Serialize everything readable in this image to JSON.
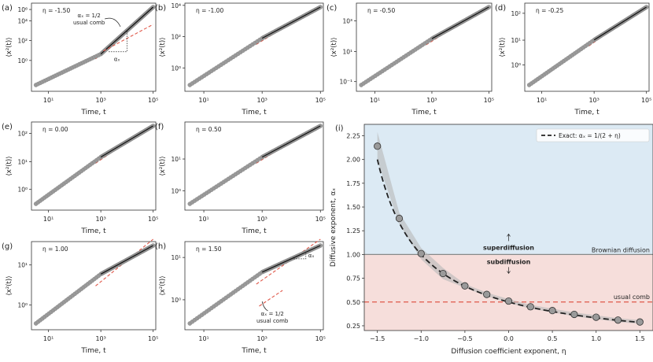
{
  "chart_data": [
    {
      "type": "scatter",
      "panel": "(a)",
      "eta": -1.5,
      "eta_label": "η = -1.50",
      "xlabel": "Time, t",
      "ylabel": "⟨x²(t)⟩",
      "xscale": "log",
      "yscale": "log",
      "xtick_labels": [
        "10¹",
        "10³",
        "10⁵"
      ],
      "ytick_labels": [
        "10⁰",
        "10²",
        "10⁴",
        "10⁶"
      ],
      "y_end_decades": 7.1,
      "fit_slope_long": 2.14,
      "ref_slope": 0.5,
      "annotation": {
        "line1": "αₓ = 1/2",
        "line2": "usual comb",
        "slope_label": "αₓ"
      }
    },
    {
      "type": "scatter",
      "panel": "(b)",
      "eta": -1.0,
      "eta_label": "η = -1.00",
      "xlabel": "Time, t",
      "ylabel": "⟨x²(t)⟩",
      "xscale": "log",
      "yscale": "log",
      "xtick_labels": [
        "10¹",
        "10³",
        "10⁵"
      ],
      "ytick_labels": [
        "10⁰",
        "10²",
        "10⁴"
      ],
      "y_end_decades": 5.0,
      "fit_slope_long": 1.0
    },
    {
      "type": "scatter",
      "panel": "(c)",
      "eta": -0.5,
      "eta_label": "η = -0.50",
      "xlabel": "Time, t",
      "ylabel": "⟨x²(t)⟩",
      "xscale": "log",
      "yscale": "log",
      "xtick_labels": [
        "10¹",
        "10³",
        "10⁵"
      ],
      "ytick_labels": [
        "10⁻¹",
        "10¹",
        "10³"
      ],
      "y_end_decades": 3.3,
      "fit_slope_long": 0.67
    },
    {
      "type": "scatter",
      "panel": "(d)",
      "eta": -0.25,
      "eta_label": "η = -0.25",
      "xlabel": "Time, t",
      "ylabel": "⟨x²(t)⟩",
      "xscale": "log",
      "yscale": "log",
      "xtick_labels": [
        "10¹",
        "10³",
        "10⁵"
      ],
      "ytick_labels": [
        "10⁰",
        "10¹",
        "10²"
      ],
      "y_end_decades": 2.7,
      "fit_slope_long": 0.57
    },
    {
      "type": "scatter",
      "panel": "(e)",
      "eta": 0.0,
      "eta_label": "η = 0.00",
      "xlabel": "Time, t",
      "ylabel": "⟨x²(t)⟩",
      "xscale": "log",
      "yscale": "log",
      "xtick_labels": [
        "10¹",
        "10³",
        "10⁵"
      ],
      "ytick_labels": [
        "10⁰",
        "10¹",
        "10²"
      ],
      "y_end_decades": 2.5,
      "fit_slope_long": 0.5
    },
    {
      "type": "scatter",
      "panel": "(f)",
      "eta": 0.5,
      "eta_label": "η = 0.50",
      "xlabel": "Time, t",
      "ylabel": "⟨x²(t)⟩",
      "xscale": "log",
      "yscale": "log",
      "xtick_labels": [
        "10¹",
        "10³",
        "10⁵"
      ],
      "ytick_labels": [
        "10⁰",
        "10¹"
      ],
      "y_end_decades": 2.0,
      "fit_slope_long": 0.4
    },
    {
      "type": "scatter",
      "panel": "(g)",
      "eta": 1.0,
      "eta_label": "η = 1.00",
      "xlabel": "Time, t",
      "ylabel": "⟨x²(t)⟩",
      "xscale": "log",
      "yscale": "log",
      "xtick_labels": [
        "10¹",
        "10³",
        "10⁵"
      ],
      "ytick_labels": [
        "10⁰",
        "10¹"
      ],
      "y_end_decades": 1.8,
      "fit_slope_long": 0.33
    },
    {
      "type": "scatter",
      "panel": "(h)",
      "eta": 1.5,
      "eta_label": "η = 1.50",
      "xlabel": "Time, t",
      "ylabel": "⟨x²(t)⟩",
      "xscale": "log",
      "yscale": "log",
      "xtick_labels": [
        "10¹",
        "10³",
        "10⁵"
      ],
      "ytick_labels": [
        "10⁰",
        "10¹"
      ],
      "y_end_decades": 1.7,
      "fit_slope_long": 0.29,
      "ref_slope": 0.5,
      "annotation": {
        "line1": "αₓ = 1/2",
        "line2": "usual comb",
        "slope_label": "αₓ"
      }
    },
    {
      "type": "line",
      "panel": "(i)",
      "xlabel": "Diffusion coefficient exponent, η",
      "ylabel": "Diffusive exponent, αₓ",
      "xlim": [
        -1.65,
        1.65
      ],
      "ylim": [
        0.2,
        2.37
      ],
      "xticks": [
        -1.5,
        -1.0,
        -0.5,
        0.0,
        0.5,
        1.0,
        1.5
      ],
      "xtick_labels": [
        "−1.5",
        "−1.0",
        "−0.5",
        "0.0",
        "0.5",
        "1.0",
        "1.5"
      ],
      "yticks": [
        0.25,
        0.5,
        0.75,
        1.0,
        1.25,
        1.5,
        1.75,
        2.0,
        2.25
      ],
      "ytick_labels": [
        "0.25",
        "0.50",
        "0.75",
        "1.00",
        "1.25",
        "1.50",
        "1.75",
        "2.00",
        "2.25"
      ],
      "points": {
        "eta": [
          -1.5,
          -1.25,
          -1.0,
          -0.75,
          -0.5,
          -0.25,
          0.0,
          0.25,
          0.5,
          0.75,
          1.0,
          1.25,
          1.5
        ],
        "alpha": [
          2.14,
          1.38,
          1.01,
          0.8,
          0.67,
          0.58,
          0.51,
          0.45,
          0.41,
          0.37,
          0.34,
          0.31,
          0.29
        ]
      },
      "legend": {
        "label": "Exact: αₓ = 1/(2 + η)",
        "position": "top-right"
      },
      "reference_lines": [
        {
          "y": 1.0,
          "label": "Brownian diffusion",
          "color": "#888888"
        },
        {
          "y": 0.5,
          "label": "usual comb",
          "color": "#e0584a"
        }
      ],
      "region_labels": {
        "above": "superdiffusion",
        "below": "subdiffusion"
      },
      "colors": {
        "super_bg": "#dceaf4",
        "sub_bg": "#f6dedb",
        "super_text": "#3a8fc4",
        "sub_text": "#e0584a",
        "exact": "#222222",
        "fit": "#e0584a",
        "marker": "#9a9a9a"
      }
    }
  ]
}
